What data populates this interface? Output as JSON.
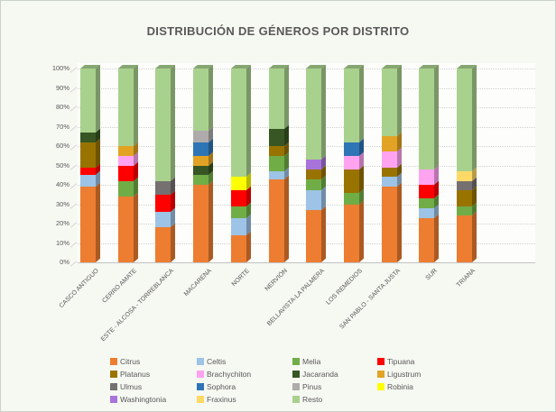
{
  "chart_data": {
    "type": "bar",
    "stacked": true,
    "percent": true,
    "bar_style": "3d-column",
    "title": "DISTRIBUCIÓN DE GÉNEROS POR DISTRITO",
    "xlabel": "",
    "ylabel": "",
    "ylim": [
      0,
      100
    ],
    "grid": true,
    "legend_position": "bottom",
    "y_ticks": [
      "0%",
      "10%",
      "20%",
      "30%",
      "40%",
      "50%",
      "60%",
      "70%",
      "80%",
      "90%",
      "100%"
    ],
    "categories": [
      "CASCO ANTIGUO",
      "CERRO AMATE",
      "ESTE - ALCOSA - TORREBLANCA",
      "MACARENA",
      "NORTE",
      "NERVIÓN",
      "BELLAVISTA-LA PALMERA",
      "LOS REMEDIOS",
      "SAN PABLO - SANTA JUSTA",
      "SUR",
      "TRIANA"
    ],
    "series": [
      {
        "name": "Citrus",
        "color": "#ED7D31",
        "values": [
          39,
          34,
          18,
          40,
          14,
          43,
          27,
          30,
          39,
          23,
          24
        ]
      },
      {
        "name": "Celtis",
        "color": "#9DC3E6",
        "values": [
          6,
          0,
          8,
          0,
          9,
          4,
          10,
          0,
          5,
          5,
          0
        ]
      },
      {
        "name": "Melia",
        "color": "#70AD47",
        "values": [
          0,
          8,
          0,
          5,
          6,
          8,
          6,
          6,
          0,
          5,
          5
        ]
      },
      {
        "name": "Tipuana",
        "color": "#FF0000",
        "values": [
          4,
          8,
          9,
          0,
          8,
          0,
          0,
          0,
          0,
          7,
          0
        ]
      },
      {
        "name": "Platanus",
        "color": "#997300",
        "values": [
          13,
          0,
          0,
          0,
          0,
          5,
          5,
          12,
          5,
          0,
          8
        ]
      },
      {
        "name": "Brachychiton",
        "color": "#FFA3F1",
        "values": [
          0,
          5,
          0,
          0,
          0,
          0,
          0,
          7,
          8,
          8,
          0
        ]
      },
      {
        "name": "Jacaranda",
        "color": "#375623",
        "values": [
          5,
          0,
          0,
          5,
          0,
          9,
          0,
          0,
          0,
          0,
          0
        ]
      },
      {
        "name": "Ligustrum",
        "color": "#E2A324",
        "values": [
          0,
          5,
          0,
          5,
          0,
          0,
          0,
          0,
          8,
          0,
          0
        ]
      },
      {
        "name": "Ulmus",
        "color": "#767171",
        "values": [
          0,
          0,
          7,
          0,
          0,
          0,
          0,
          0,
          0,
          0,
          5
        ]
      },
      {
        "name": "Sophora",
        "color": "#2E75B6",
        "values": [
          0,
          0,
          0,
          7,
          0,
          0,
          0,
          7,
          0,
          0,
          0
        ]
      },
      {
        "name": "Pinus",
        "color": "#AFABAB",
        "values": [
          0,
          0,
          0,
          6,
          0,
          0,
          0,
          0,
          0,
          0,
          0
        ]
      },
      {
        "name": "Robinia",
        "color": "#FFFF00",
        "values": [
          0,
          0,
          0,
          0,
          7,
          0,
          0,
          0,
          0,
          0,
          0
        ]
      },
      {
        "name": "Washingtonia",
        "color": "#A874DB",
        "values": [
          0,
          0,
          0,
          0,
          0,
          0,
          5,
          0,
          0,
          0,
          0
        ]
      },
      {
        "name": "Fraxinus",
        "color": "#FFD966",
        "values": [
          0,
          0,
          0,
          0,
          0,
          0,
          0,
          0,
          0,
          0,
          5
        ]
      },
      {
        "name": "Resto",
        "color": "#A9D18E",
        "values": [
          33,
          40,
          58,
          32,
          56,
          31,
          47,
          38,
          35,
          52,
          53
        ]
      }
    ],
    "colors": {
      "background": "#F6F8F2",
      "plot_background": "#FDFDFB",
      "gridline": "#D2D2D2",
      "axis_line": "#C2C2C2",
      "text": "#595959",
      "border": "#C9D2CB"
    }
  }
}
